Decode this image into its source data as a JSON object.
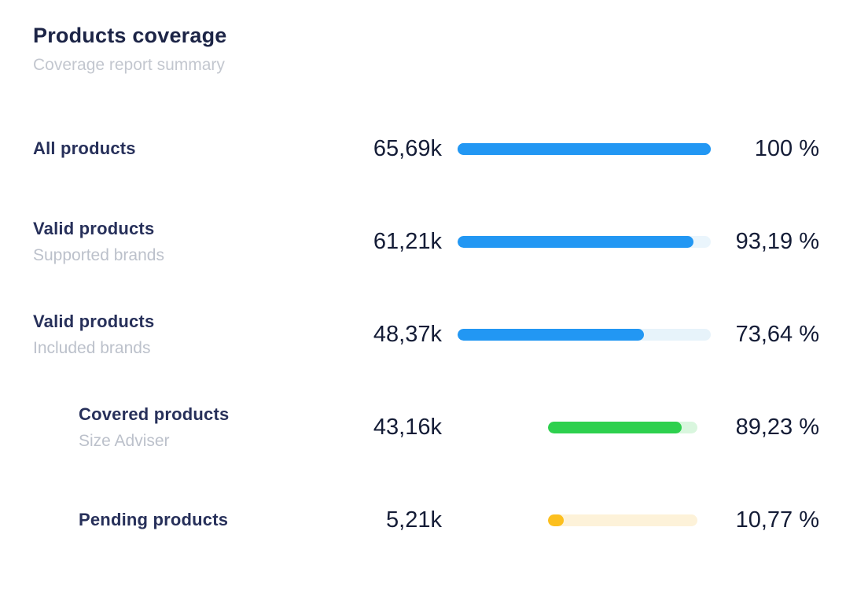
{
  "header": {
    "title": "Products coverage",
    "subtitle": "Coverage report summary"
  },
  "chart_data": {
    "type": "bar",
    "title": "Products coverage",
    "subtitle": "Coverage report summary",
    "orientation": "horizontal",
    "value_range": [
      0,
      100
    ],
    "rows": [
      {
        "label": "All products",
        "sublabel": "",
        "value": "65,69k",
        "percent": 100,
        "percent_label": "100 %",
        "fill_color": "#2297f3",
        "track_color": "#2297f3",
        "indent": false
      },
      {
        "label": "Valid products",
        "sublabel": "Supported brands",
        "value": "61,21k",
        "percent": 93.19,
        "percent_label": "93,19 %",
        "fill_color": "#2297f3",
        "track_color": "#eaf5fc",
        "indent": false
      },
      {
        "label": "Valid products",
        "sublabel": "Included brands",
        "value": "48,37k",
        "percent": 73.64,
        "percent_label": "73,64 %",
        "fill_color": "#2297f3",
        "track_color": "#e7f3fa",
        "indent": false
      },
      {
        "label": "Covered products",
        "sublabel": "Size Adviser",
        "value": "43,16k",
        "percent": 89.23,
        "percent_label": "89,23 %",
        "fill_color": "#2ed04e",
        "track_color": "#d9f6de",
        "indent": true
      },
      {
        "label": "Pending products",
        "sublabel": "",
        "value": "5,21k",
        "percent": 10.77,
        "percent_label": "10,77 %",
        "fill_color": "#fcbf1e",
        "track_color": "#fdf2d9",
        "indent": true
      }
    ]
  }
}
